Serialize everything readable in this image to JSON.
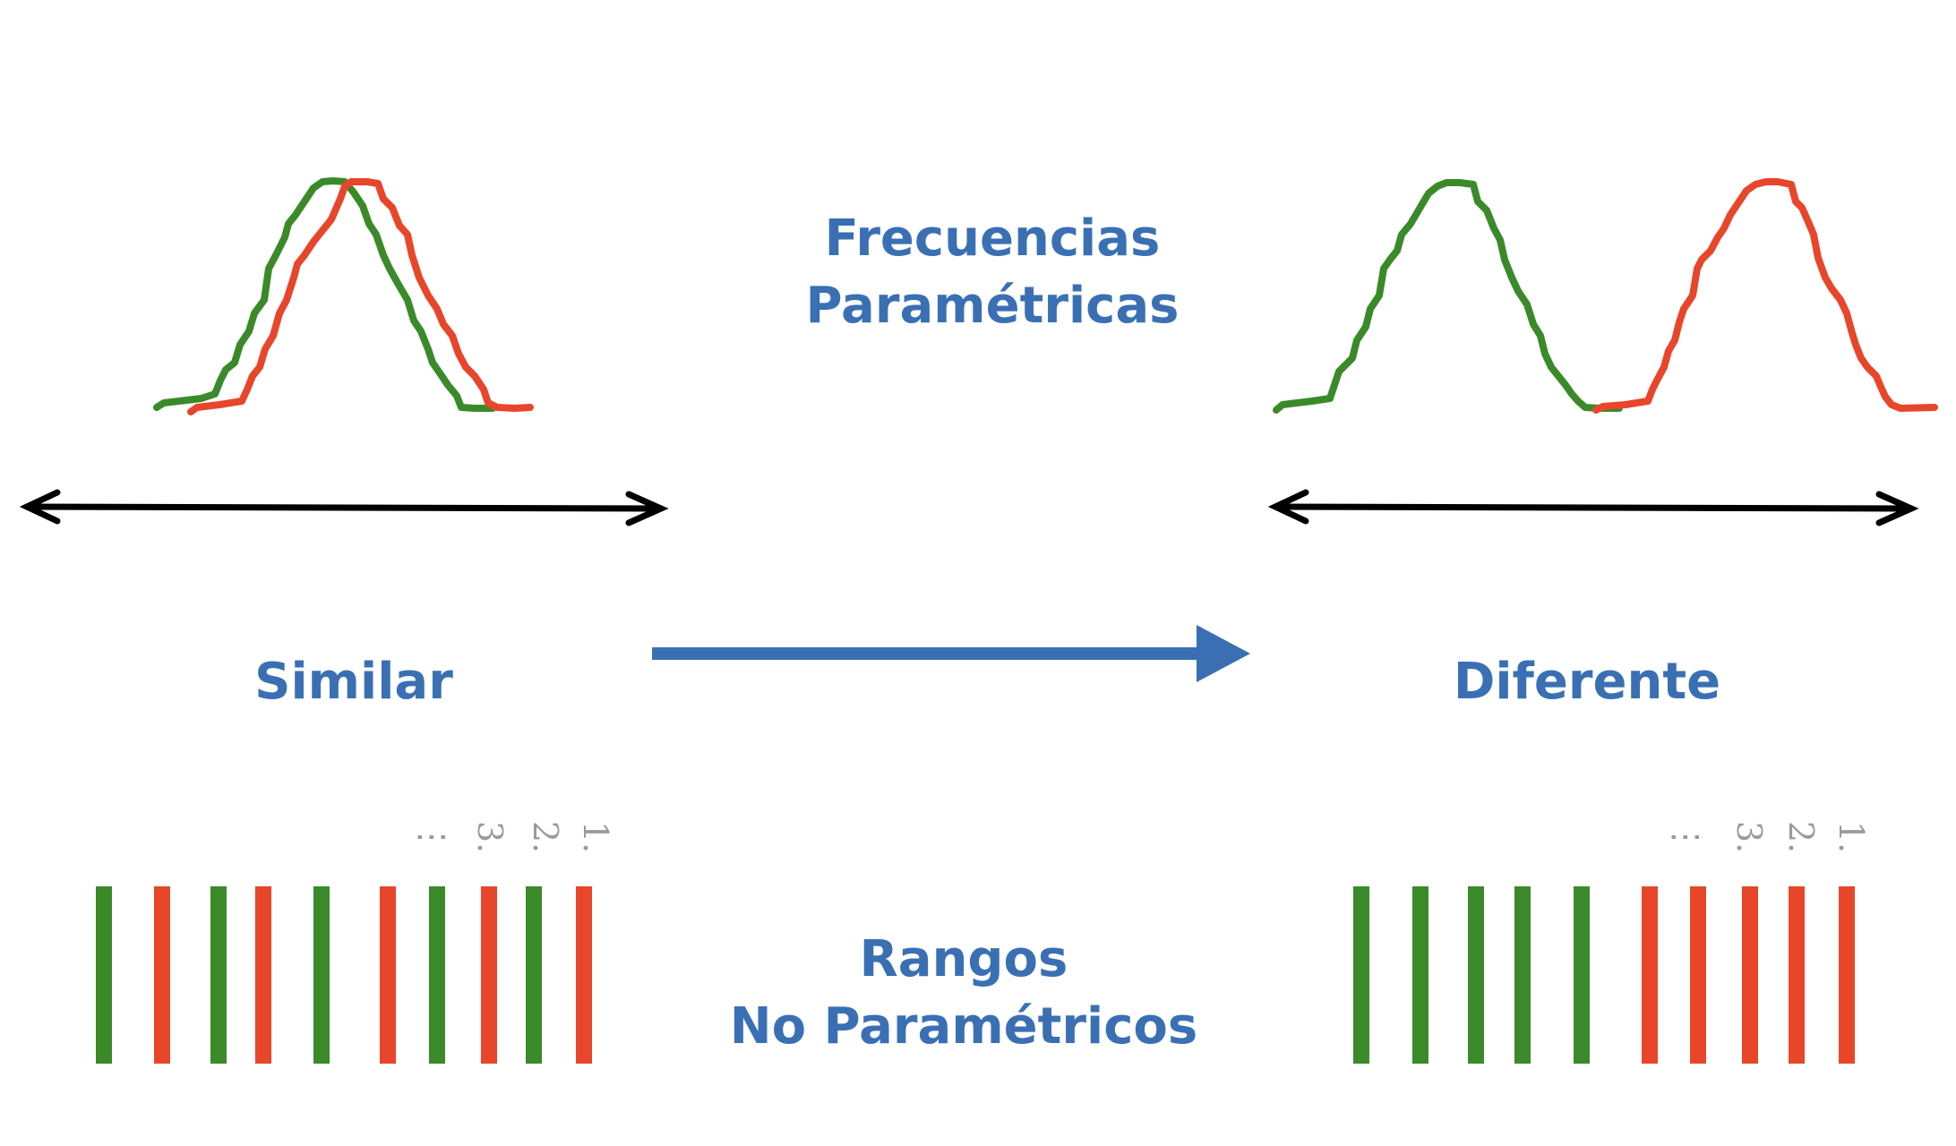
{
  "colors": {
    "group_a": "#3a8a2a",
    "group_b": "#e8462a",
    "label": "#3a70b3",
    "axis": "#000000",
    "rank_number": "#9a9a9a",
    "arrow": "#3a70b3"
  },
  "labels": {
    "top_line1": "Frecuencias",
    "top_line2": "Paramétricas",
    "bottom_line1": "Rangos",
    "bottom_line2": "No Paramétricos",
    "left": "Similar",
    "right": "Diferente"
  },
  "rank_numbers": {
    "left": [
      "1.",
      "2.",
      "3.",
      "⋮"
    ],
    "right": [
      "1.",
      "2.",
      "3.",
      "⋮"
    ]
  },
  "bars": {
    "left": [
      "a",
      "b",
      "a",
      "b",
      "a",
      "b",
      "a",
      "b",
      "a",
      "b"
    ],
    "right": [
      "a",
      "a",
      "a",
      "a",
      "a",
      "b",
      "b",
      "b",
      "b",
      "b"
    ]
  },
  "icons": {
    "axis_left": "double-arrow-icon",
    "axis_right": "double-arrow-icon",
    "transition": "right-arrow-icon"
  }
}
